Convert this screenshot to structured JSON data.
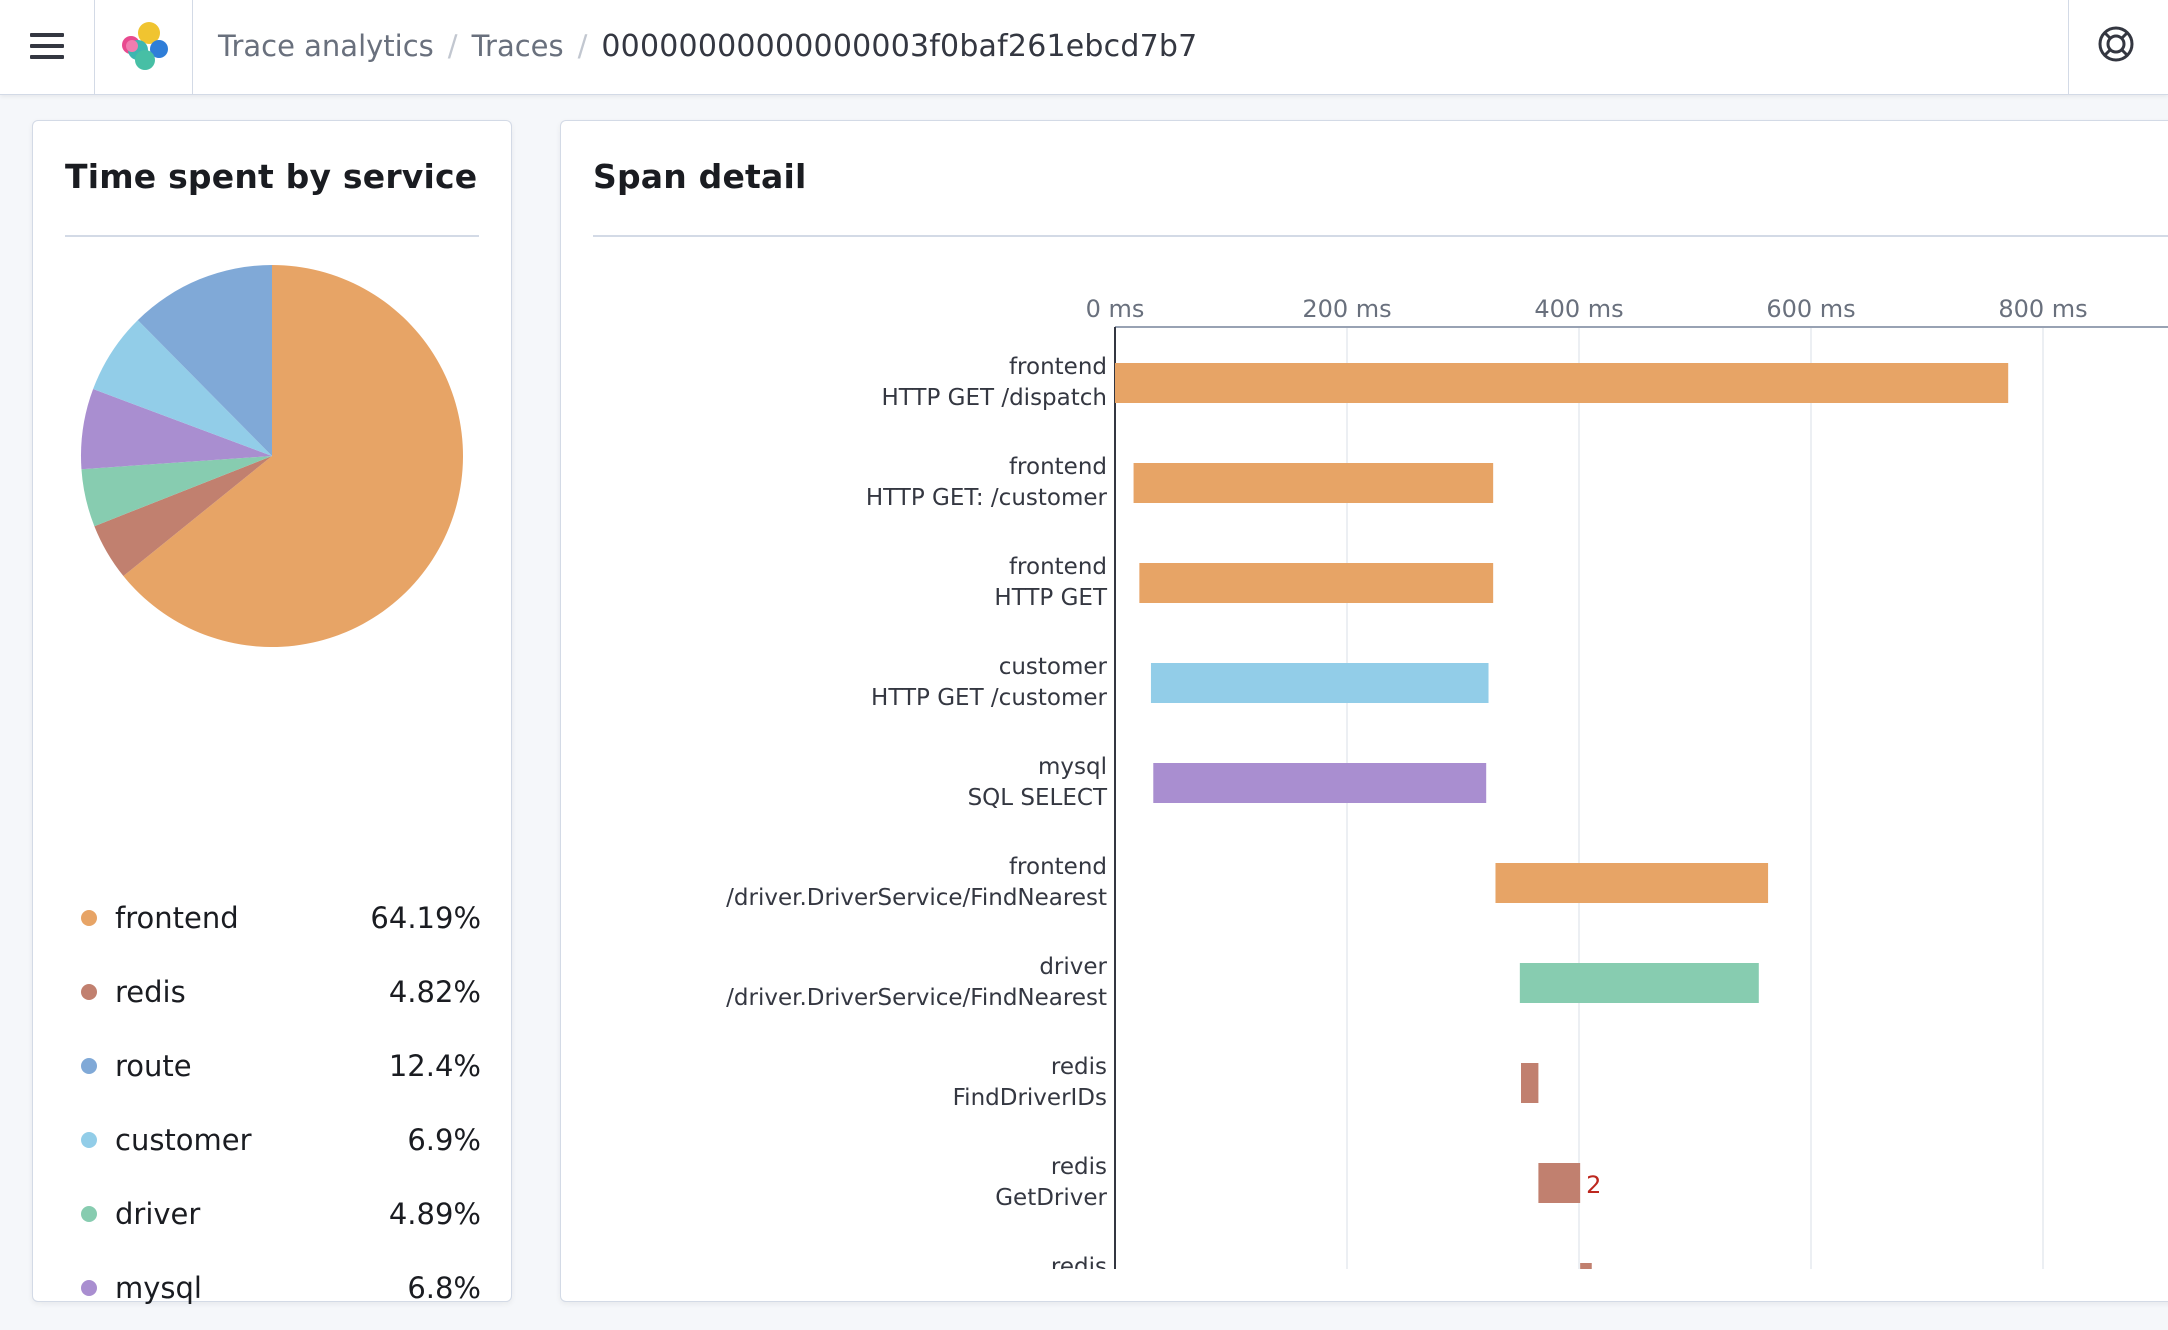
{
  "header": {
    "breadcrumbs": [
      "Trace analytics",
      "Traces"
    ],
    "current": "00000000000000003f0baf261ebcd7b7",
    "menu_icon": "hamburger-menu-icon",
    "logo_icon": "app-logo-icon",
    "help_icon": "help-icon"
  },
  "pie_panel": {
    "title": "Time spent by service"
  },
  "span_panel": {
    "title": "Span detail"
  },
  "chart_data": [
    {
      "type": "pie",
      "slices": [
        {
          "label": "frontend",
          "value": 64.19,
          "value_text": "64.19%",
          "color": "#e7a466"
        },
        {
          "label": "redis",
          "value": 4.82,
          "value_text": "4.82%",
          "color": "#c1806f"
        },
        {
          "label": "driver",
          "value": 4.89,
          "value_text": "4.89%",
          "color": "#87ccb0"
        },
        {
          "label": "mysql",
          "value": 6.8,
          "value_text": "6.8%",
          "color": "#a98ed0"
        },
        {
          "label": "customer",
          "value": 6.9,
          "value_text": "6.9%",
          "color": "#92cde8"
        },
        {
          "label": "route",
          "value": 12.4,
          "value_text": "12.4%",
          "color": "#80a9d7"
        }
      ],
      "legend_order": [
        "frontend",
        "redis",
        "route",
        "customer",
        "driver",
        "mysql"
      ],
      "legend": "below"
    },
    {
      "type": "bar",
      "orientation": "horizontal-gantt",
      "x_unit": "ms",
      "x_ticks": [
        0,
        200,
        400,
        600,
        800
      ],
      "x_tick_labels": [
        "0 ms",
        "200 ms",
        "400 ms",
        "600 ms",
        "800 ms"
      ],
      "x_axis_position": "top",
      "grid": true,
      "spans": [
        {
          "service": "frontend",
          "operation": "HTTP GET /dispatch",
          "start": 0,
          "end": 770,
          "color": "#e7a466"
        },
        {
          "service": "frontend",
          "operation": "HTTP GET: /customer",
          "start": 16,
          "end": 326,
          "color": "#e7a466"
        },
        {
          "service": "frontend",
          "operation": "HTTP GET",
          "start": 21,
          "end": 326,
          "color": "#e7a466"
        },
        {
          "service": "customer",
          "operation": "HTTP GET /customer",
          "start": 31,
          "end": 322,
          "color": "#92cde8"
        },
        {
          "service": "mysql",
          "operation": "SQL SELECT",
          "start": 33,
          "end": 320,
          "color": "#a98ed0"
        },
        {
          "service": "frontend",
          "operation": "/driver.DriverService/FindNearest",
          "start": 328,
          "end": 563,
          "color": "#e7a466"
        },
        {
          "service": "driver",
          "operation": "/driver.DriverService/FindNearest",
          "start": 349,
          "end": 555,
          "color": "#87ccb0"
        },
        {
          "service": "redis",
          "operation": "FindDriverIDs",
          "start": 350,
          "end": 365,
          "color": "#c1806f"
        },
        {
          "service": "redis",
          "operation": "GetDriver",
          "start": 365,
          "end": 401,
          "color": "#c1806f",
          "annotation": "2"
        },
        {
          "service": "redis",
          "operation": "",
          "start": 401,
          "end": 411,
          "color": "#c1806f"
        }
      ]
    }
  ]
}
